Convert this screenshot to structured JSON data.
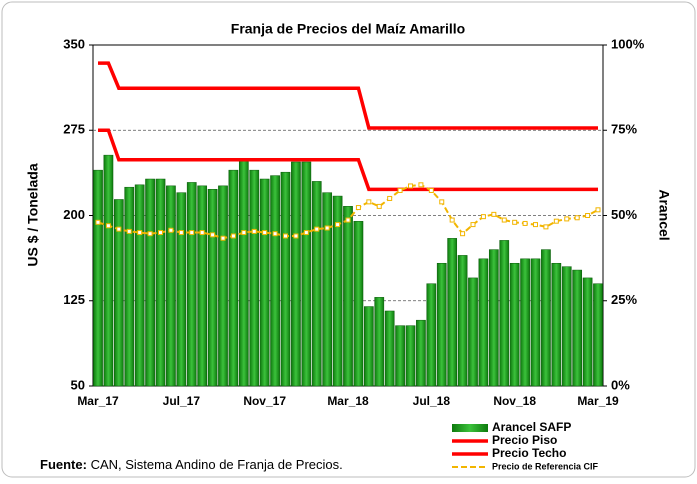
{
  "chart_data": {
    "type": "bar",
    "title": "Franja de Precios del Maíz Amarillo",
    "y_label": "US $ / Tonelada",
    "y2_label": "Arancel",
    "categories": [
      "Mar_17",
      null,
      null,
      null,
      null,
      null,
      null,
      null,
      "Jul_17",
      null,
      null,
      null,
      null,
      null,
      null,
      null,
      "Nov_17",
      null,
      null,
      null,
      null,
      null,
      null,
      null,
      "Mar_18",
      null,
      null,
      null,
      null,
      null,
      null,
      null,
      "Jul_18",
      null,
      null,
      null,
      null,
      null,
      null,
      null,
      "Nov_18",
      null,
      null,
      null,
      null,
      null,
      null,
      null,
      "Mar_19"
    ],
    "ylim": [
      50,
      350
    ],
    "yticks": [
      50,
      125,
      200,
      275,
      350
    ],
    "y2lim": [
      0,
      100
    ],
    "y2ticks": [
      {
        "value": 0,
        "label": "0%"
      },
      {
        "value": 25,
        "label": "25%"
      },
      {
        "value": 50,
        "label": "50%"
      },
      {
        "value": 75,
        "label": "75%"
      },
      {
        "value": 100,
        "label": "100%"
      }
    ],
    "grid": true,
    "series": [
      {
        "name": "Arancel SAFP",
        "type": "bar",
        "axis": "y2",
        "color": "#1f9e1f",
        "values": [
          63.3,
          67.7,
          54.7,
          58.3,
          59,
          60.7,
          60.7,
          58.7,
          56.7,
          59.7,
          58.7,
          57.7,
          58.7,
          63.3,
          66.7,
          63.3,
          60.7,
          61.7,
          62.7,
          65.7,
          65.7,
          60,
          56.7,
          55.7,
          52.7,
          48.3,
          23.3,
          26,
          22,
          17.7,
          17.7,
          19.3,
          30,
          36,
          43.3,
          38.3,
          31.7,
          37.3,
          40,
          42.7,
          36,
          37.3,
          37.3,
          40,
          36,
          35,
          34,
          31.7,
          30
        ]
      },
      {
        "name": "Precio Piso",
        "type": "line",
        "color": "#ff0000",
        "values": [
          275,
          275,
          249,
          249,
          249,
          249,
          249,
          249,
          249,
          249,
          249,
          249,
          249,
          249,
          249,
          249,
          249,
          249,
          249,
          249,
          249,
          249,
          249,
          249,
          249,
          249,
          223,
          223,
          223,
          223,
          223,
          223,
          223,
          223,
          223,
          223,
          223,
          223,
          223,
          223,
          223,
          223,
          223,
          223,
          223,
          223,
          223,
          223,
          223
        ]
      },
      {
        "name": "Precio Techo",
        "type": "line",
        "color": "#ff0000",
        "values": [
          334,
          334,
          312,
          312,
          312,
          312,
          312,
          312,
          312,
          312,
          312,
          312,
          312,
          312,
          312,
          312,
          312,
          312,
          312,
          312,
          312,
          312,
          312,
          312,
          312,
          312,
          277,
          277,
          277,
          277,
          277,
          277,
          277,
          277,
          277,
          277,
          277,
          277,
          277,
          277,
          277,
          277,
          277,
          277,
          277,
          277,
          277,
          277,
          277
        ]
      },
      {
        "name": "Precio de Referencia CIF",
        "type": "dashed",
        "color": "#f2b500",
        "values": [
          194,
          191,
          188,
          186,
          185,
          184,
          185,
          187,
          185,
          185,
          185,
          183,
          180,
          182,
          185,
          186,
          185,
          184,
          182,
          182,
          185,
          188,
          189,
          192,
          196,
          207,
          212,
          208,
          215,
          222,
          226,
          227,
          222,
          212,
          196,
          184,
          192,
          199,
          201,
          196,
          194,
          193,
          192,
          190,
          195,
          197,
          198,
          200,
          205
        ]
      }
    ],
    "source_label": "Fuente:",
    "source_text": "CAN, Sistema Andino de Franja de Precios."
  }
}
